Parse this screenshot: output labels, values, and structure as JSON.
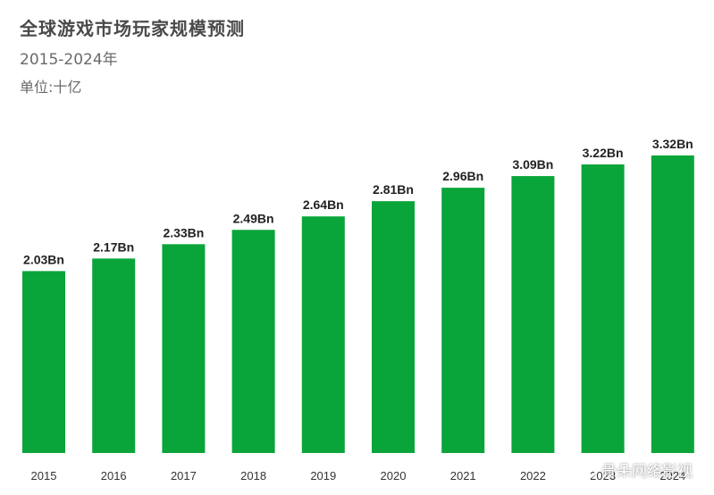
{
  "header": {
    "title": "全球游戏市场玩家规模预测",
    "subtitle": "2015-2024年",
    "unit": "单位:十亿"
  },
  "watermark": {
    "text": "骨朵网络影视",
    "icon": "wechat-icon"
  },
  "colors": {
    "bar": "#0aa53a",
    "label": "#222222",
    "tick": "#333333"
  },
  "chart_data": {
    "type": "bar",
    "title": "全球游戏市场玩家规模预测",
    "subtitle": "2015-2024年",
    "ylabel": "单位:十亿",
    "categories": [
      "2015",
      "2016",
      "2017",
      "2018",
      "2019",
      "2020",
      "2021",
      "2022",
      "2023",
      "2024"
    ],
    "values": [
      2.03,
      2.17,
      2.33,
      2.49,
      2.64,
      2.81,
      2.96,
      3.09,
      3.22,
      3.32
    ],
    "data_labels": [
      "2.03Bn",
      "2.17Bn",
      "2.33Bn",
      "2.49Bn",
      "2.64Bn",
      "2.81Bn",
      "2.96Bn",
      "3.09Bn",
      "3.22Bn",
      "3.32Bn"
    ],
    "ylim": [
      0,
      3.32
    ],
    "grid": false,
    "legend": "none"
  }
}
